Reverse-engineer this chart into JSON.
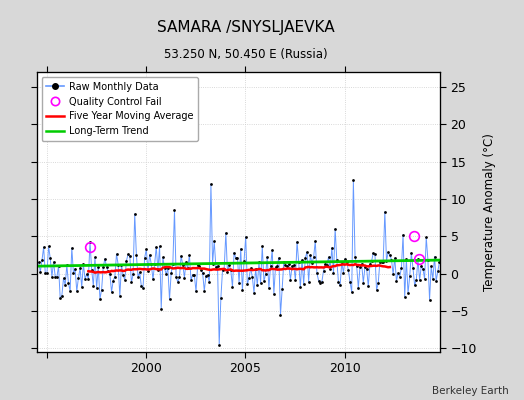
{
  "title": "SAMARA /SNYSLJAEVKA",
  "subtitle": "53.250 N, 50.450 E (Russia)",
  "ylabel": "Temperature Anomaly (°C)",
  "credit": "Berkeley Earth",
  "background_color": "#d8d8d8",
  "plot_bg_color": "#ffffff",
  "grid_color": "#cccccc",
  "line_color": "#6699ff",
  "dot_color": "#000000",
  "ma_color": "#ff0000",
  "trend_color": "#00cc00",
  "qc_color": "#ff00ff",
  "xlim": [
    1994.5,
    2014.8
  ],
  "ylim": [
    -10.5,
    27
  ],
  "yticks": [
    -10,
    -5,
    0,
    5,
    10,
    15,
    20,
    25
  ],
  "xticks": [
    1995,
    2000,
    2005,
    2010
  ],
  "xticklabels": [
    "",
    "2000",
    "2005",
    "2010"
  ],
  "start_year": 1994.6,
  "n_months": 243,
  "seed": 42
}
